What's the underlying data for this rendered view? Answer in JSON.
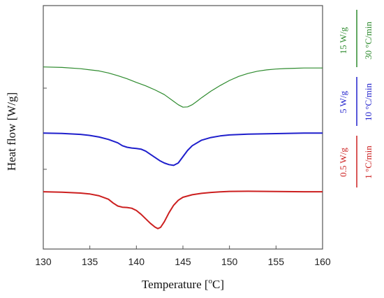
{
  "chart_data": {
    "type": "line",
    "xlabel_text": "Temperature [",
    "xlabel_sup": "o",
    "xlabel_tail": "C]",
    "ylabel": "Heat flow [W/g]",
    "xlim": [
      130,
      160
    ],
    "x_ticks": [
      "130",
      "135",
      "140",
      "145",
      "150",
      "155",
      "160"
    ],
    "y_ticks_labeled": false,
    "grid": false,
    "legend_placement": "right",
    "series": [
      {
        "scale_label": "15 W/g",
        "rate_label": "30 °C/min",
        "color": "#2e8b2e",
        "x": [
          130,
          132,
          134,
          136,
          137,
          138,
          139,
          140,
          141,
          142,
          143,
          144,
          144.5,
          145,
          145.5,
          146,
          146.5,
          147,
          148,
          149,
          150,
          151,
          152,
          153,
          154,
          155,
          156,
          157,
          158,
          159,
          160
        ],
        "y": [
          -0.5,
          -0.54,
          -0.63,
          -0.8,
          -0.95,
          -1.15,
          -1.38,
          -1.65,
          -1.9,
          -2.2,
          -2.55,
          -3.05,
          -3.3,
          -3.48,
          -3.46,
          -3.3,
          -3.05,
          -2.78,
          -2.3,
          -1.88,
          -1.5,
          -1.2,
          -0.98,
          -0.82,
          -0.72,
          -0.66,
          -0.62,
          -0.6,
          -0.58,
          -0.58,
          -0.58
        ]
      },
      {
        "scale_label": "5 W/g",
        "rate_label": "10 °C/min",
        "color": "#1f1fcc",
        "x": [
          130,
          132,
          134,
          135,
          136,
          137,
          138,
          138.5,
          139,
          139.5,
          140,
          140.5,
          141,
          141.5,
          142,
          142.5,
          143,
          143.5,
          144,
          144.5,
          145,
          145.5,
          146,
          147,
          148,
          149,
          150,
          152,
          154,
          156,
          158,
          160
        ],
        "y": [
          -0.1,
          -0.12,
          -0.18,
          -0.25,
          -0.35,
          -0.5,
          -0.72,
          -0.9,
          -1.0,
          -1.05,
          -1.08,
          -1.12,
          -1.25,
          -1.45,
          -1.65,
          -1.85,
          -2.0,
          -2.1,
          -2.15,
          -2.0,
          -1.6,
          -1.2,
          -0.9,
          -0.55,
          -0.38,
          -0.28,
          -0.22,
          -0.17,
          -0.14,
          -0.12,
          -0.1,
          -0.1
        ]
      },
      {
        "scale_label": "0.5 W/g",
        "rate_label": "1 °C/min",
        "color": "#cc1f1f",
        "x": [
          130,
          132,
          134,
          135,
          136,
          137,
          137.5,
          138,
          138.5,
          139,
          139.5,
          140,
          140.5,
          141,
          141.5,
          142,
          142.3,
          142.6,
          143,
          143.5,
          144,
          144.5,
          145,
          146,
          147,
          148,
          149,
          150,
          152,
          154,
          156,
          158,
          160
        ],
        "y": [
          -0.05,
          -0.08,
          -0.14,
          -0.2,
          -0.32,
          -0.55,
          -0.8,
          -1.0,
          -1.08,
          -1.1,
          -1.15,
          -1.3,
          -1.55,
          -1.85,
          -2.15,
          -2.4,
          -2.5,
          -2.42,
          -2.05,
          -1.45,
          -0.95,
          -0.62,
          -0.42,
          -0.25,
          -0.16,
          -0.1,
          -0.06,
          -0.03,
          -0.02,
          -0.03,
          -0.04,
          -0.05,
          -0.05
        ]
      }
    ]
  }
}
